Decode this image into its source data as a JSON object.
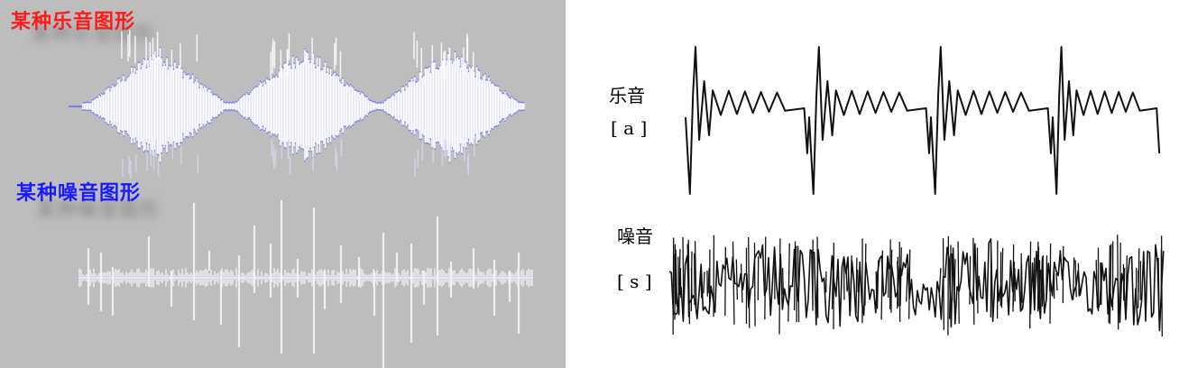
{
  "left": {
    "background": "#bdbdbd",
    "music_title": "某种乐音图形",
    "music_title_color": "#ff1a1a",
    "noise_title": "某种噪音图形",
    "noise_title_color": "#1a1aff",
    "wave_color": "#ffffff",
    "wave_edge_color": "#7a7af0"
  },
  "right": {
    "music_label": "乐音",
    "music_symbol": "[ a ]",
    "noise_label": "噪音",
    "noise_symbol": "[ s ]"
  }
}
